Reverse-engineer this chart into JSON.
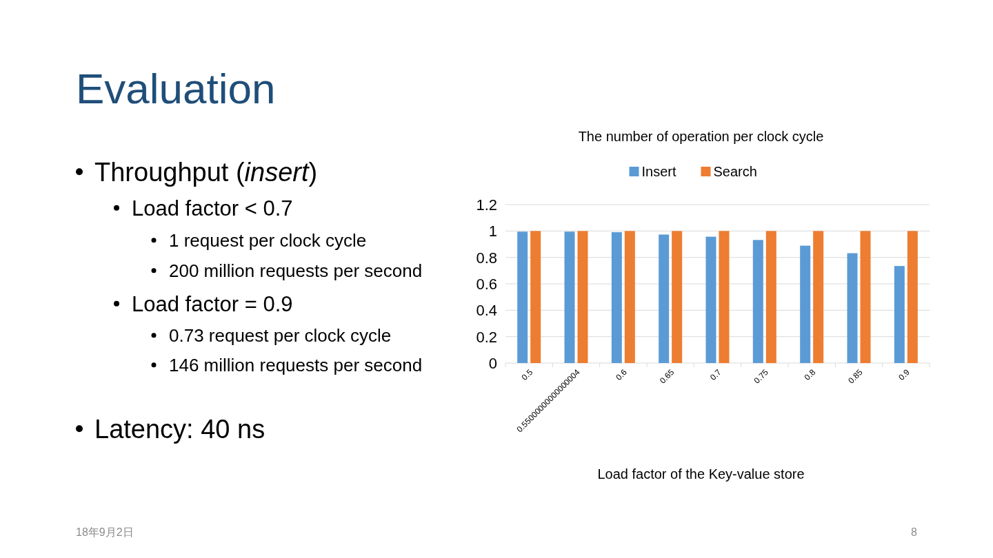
{
  "chart_data": {
    "type": "bar",
    "title": "The number of operation per clock cycle",
    "xlabel": "Load factor of the Key-value store",
    "categories": [
      "0.5",
      "0.55000000000000004",
      "0.6",
      "0.65",
      "0.7",
      "0.75",
      "0.8",
      "0.85",
      "0.9"
    ],
    "series": [
      {
        "name": "Insert",
        "color": "#5b9bd5",
        "values": [
          0.995,
          0.995,
          0.991,
          0.973,
          0.957,
          0.932,
          0.889,
          0.832,
          0.735
        ]
      },
      {
        "name": "Search",
        "color": "#ed7d31",
        "values": [
          1,
          1,
          1,
          1,
          1,
          1,
          1,
          1,
          1
        ]
      }
    ],
    "ylim": [
      0,
      1.2
    ],
    "yticks": [
      0,
      0.2,
      0.4,
      0.6,
      0.8,
      1,
      1.2
    ],
    "grid": "y",
    "legend": "top",
    "annotations": [
      "Evaluation",
      "Throughput (*insert*)",
      "Load factor < 0.7",
      "1 request per clock cycle",
      "200 million requests per second",
      "Load factor = 0.9",
      "0.73 request per clock cycle",
      "146 million requests per second",
      "Latency: 40 ns",
      "18年9月2日",
      "8"
    ]
  }
}
